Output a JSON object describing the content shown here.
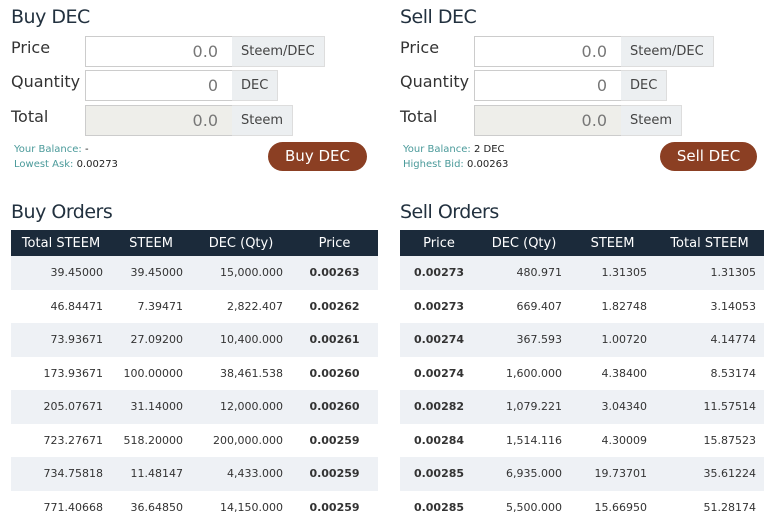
{
  "buy": {
    "title": "Buy DEC",
    "price_label": "Price",
    "price_value": "0.0",
    "price_unit": "Steem/DEC",
    "qty_label": "Quantity",
    "qty_value": "0",
    "qty_unit": "DEC",
    "total_label": "Total",
    "total_value": "0.0",
    "total_unit": "Steem",
    "balance_label": "Your Balance:",
    "balance_value": "-",
    "ask_label": "Lowest Ask:",
    "ask_value": "0.00273",
    "button": "Buy DEC"
  },
  "sell": {
    "title": "Sell DEC",
    "price_label": "Price",
    "price_value": "0.0",
    "price_unit": "Steem/DEC",
    "qty_label": "Quantity",
    "qty_value": "0",
    "qty_unit": "DEC",
    "total_label": "Total",
    "total_value": "0.0",
    "total_unit": "Steem",
    "balance_label": "Your Balance:",
    "balance_value": "2 DEC",
    "bid_label": "Highest Bid:",
    "bid_value": "0.00263",
    "button": "Sell DEC"
  },
  "buy_orders": {
    "title": "Buy Orders",
    "headers": [
      "Total STEEM",
      "STEEM",
      "DEC (Qty)",
      "Price"
    ],
    "rows": [
      [
        "39.45000",
        "39.45000",
        "15,000.000",
        "0.00263"
      ],
      [
        "46.84471",
        "7.39471",
        "2,822.407",
        "0.00262"
      ],
      [
        "73.93671",
        "27.09200",
        "10,400.000",
        "0.00261"
      ],
      [
        "173.93671",
        "100.00000",
        "38,461.538",
        "0.00260"
      ],
      [
        "205.07671",
        "31.14000",
        "12,000.000",
        "0.00260"
      ],
      [
        "723.27671",
        "518.20000",
        "200,000.000",
        "0.00259"
      ],
      [
        "734.75818",
        "11.48147",
        "4,433.000",
        "0.00259"
      ],
      [
        "771.40668",
        "36.64850",
        "14,150.000",
        "0.00259"
      ]
    ]
  },
  "sell_orders": {
    "title": "Sell Orders",
    "headers": [
      "Price",
      "DEC (Qty)",
      "STEEM",
      "Total STEEM"
    ],
    "rows": [
      [
        "0.00273",
        "480.971",
        "1.31305",
        "1.31305"
      ],
      [
        "0.00273",
        "669.407",
        "1.82748",
        "3.14053"
      ],
      [
        "0.00274",
        "367.593",
        "1.00720",
        "4.14774"
      ],
      [
        "0.00274",
        "1,600.000",
        "4.38400",
        "8.53174"
      ],
      [
        "0.00282",
        "1,079.221",
        "3.04340",
        "11.57514"
      ],
      [
        "0.00284",
        "1,514.116",
        "4.30009",
        "15.87523"
      ],
      [
        "0.00285",
        "6,935.000",
        "19.73701",
        "35.61224"
      ],
      [
        "0.00285",
        "5,500.000",
        "15.66950",
        "51.28174"
      ]
    ]
  }
}
